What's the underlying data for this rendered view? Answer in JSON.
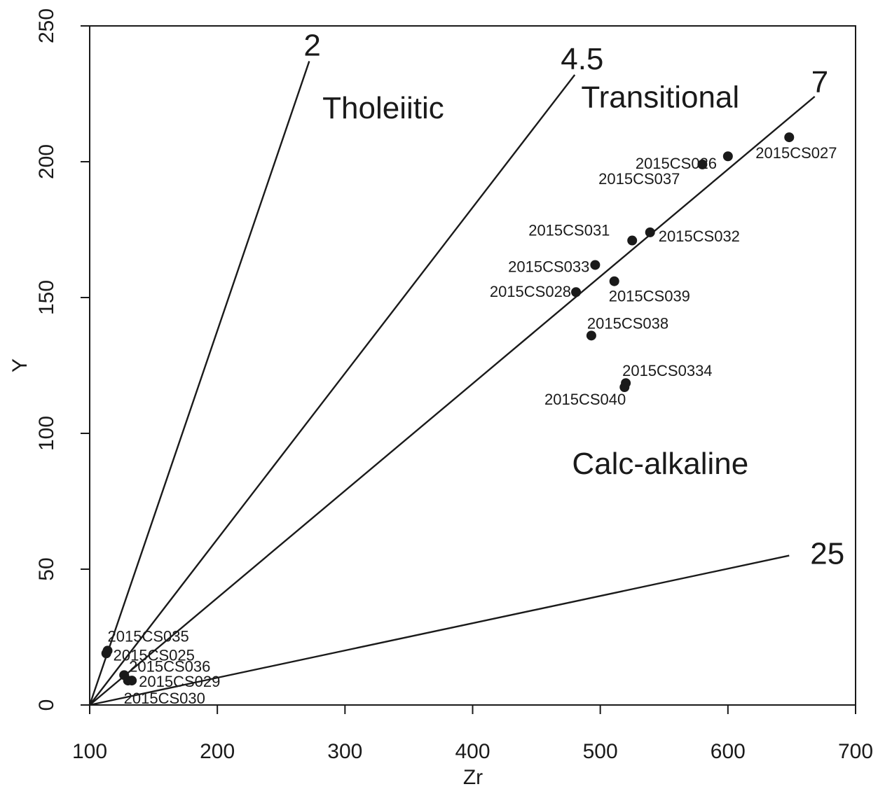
{
  "chart_data": {
    "type": "scatter",
    "title": "",
    "xlabel": "Zr",
    "ylabel": "Y",
    "xlim": [
      100,
      700
    ],
    "ylim": [
      0,
      250
    ],
    "xticks": [
      "100",
      "200",
      "300",
      "400",
      "500",
      "600",
      "700"
    ],
    "yticks": [
      "0",
      "50",
      "100",
      "150",
      "200",
      "250"
    ],
    "grid": false,
    "legend": "none",
    "point_color": "#1a1a1a",
    "line_color": "#1a1a1a",
    "ratio_lines": [
      {
        "label": "2",
        "from": [
          100,
          0
        ],
        "to": [
          272,
          237
        ]
      },
      {
        "label": "4.5",
        "from": [
          100,
          0
        ],
        "to": [
          480,
          232
        ]
      },
      {
        "label": "7",
        "from": [
          100,
          0
        ],
        "to": [
          668,
          224
        ]
      },
      {
        "label": "25",
        "from": [
          100,
          0
        ],
        "to": [
          648,
          55
        ]
      }
    ],
    "regions": [
      {
        "label": "Tholeiitic",
        "x": 330,
        "y": 216
      },
      {
        "label": "Transitional",
        "x": 547,
        "y": 220
      },
      {
        "label": "Calc-alkaline",
        "x": 547,
        "y": 85
      }
    ],
    "points": [
      {
        "label": "2015CS027",
        "x": 648,
        "y": 209
      },
      {
        "label": "2015CS026",
        "x": 600,
        "y": 202
      },
      {
        "label": "2015CS037",
        "x": 580,
        "y": 199
      },
      {
        "label": "2015CS032",
        "x": 539,
        "y": 174
      },
      {
        "label": "2015CS031",
        "x": 525,
        "y": 171
      },
      {
        "label": "2015CS033",
        "x": 496,
        "y": 162
      },
      {
        "label": "2015CS039",
        "x": 511,
        "y": 156
      },
      {
        "label": "2015CS028",
        "x": 481,
        "y": 152
      },
      {
        "label": "2015CS038",
        "x": 493,
        "y": 136
      },
      {
        "label": "2015CS0334",
        "x": 520,
        "y": 118.5
      },
      {
        "label": "2015CS040",
        "x": 519,
        "y": 117
      },
      {
        "label": "2015CS035",
        "x": 114,
        "y": 20
      },
      {
        "label": "2015CS025",
        "x": 113,
        "y": 19
      },
      {
        "label": "2015CS036",
        "x": 127,
        "y": 11
      },
      {
        "label": "2015CS029",
        "x": 133,
        "y": 9
      },
      {
        "label": "2015CS030",
        "x": 130,
        "y": 9
      }
    ]
  }
}
